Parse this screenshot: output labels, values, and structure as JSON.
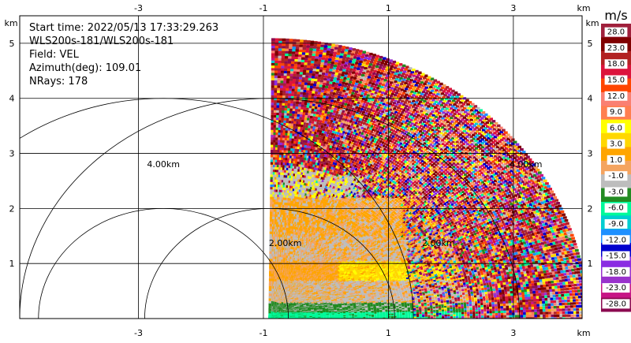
{
  "chart_data": {
    "type": "heatmap",
    "title": "",
    "info_lines": [
      "Start time: 2022/05/13 17:33:29.263",
      "WLS200s-181/WLS200s-181",
      "Field: VEL",
      "Azimuth(deg): 109.01",
      "NRays: 178"
    ],
    "xlim": [
      -4.9,
      4.1
    ],
    "ylim": [
      0,
      5.5
    ],
    "x_ticks": [
      "-3",
      "-1",
      "1",
      "3"
    ],
    "x_tick_values": [
      -3,
      -1,
      1,
      3
    ],
    "y_ticks": [
      "1",
      "2",
      "3",
      "4",
      "5"
    ],
    "y_tick_values": [
      1,
      2,
      3,
      4,
      5
    ],
    "x_unit": "km",
    "y_unit": "km",
    "grid": true,
    "range_rings": [
      {
        "radius": 2.0,
        "label": "2.00km"
      },
      {
        "radius": 4.0,
        "label": "4.00km"
      }
    ],
    "ring_label_copies": [
      {
        "label": "2.00km",
        "x": -0.65,
        "y": 1.32
      },
      {
        "label": "4.00km",
        "x": -2.6,
        "y": 2.75
      },
      {
        "label": "2.00km",
        "x": 1.8,
        "y": 1.32
      },
      {
        "label": "4.00km",
        "x": 3.2,
        "y": 2.75
      }
    ],
    "sector": {
      "center_x": -0.9,
      "center_y": 0,
      "max_range_km": 5.1,
      "theta_deg": [
        0,
        90
      ]
    },
    "colorbar": {
      "unit": "m/s",
      "tick_labels": [
        "-28.0",
        "-23.0",
        "-18.0",
        "-15.0",
        "-12.0",
        "-9.0",
        "-6.0",
        "-3.0",
        "-1.0",
        "1.0",
        "3.0",
        "6.0",
        "9.0",
        "12.0",
        "15.0",
        "18.0",
        "23.0",
        "28.0"
      ],
      "colors": [
        "#8b0a50",
        "#c71585",
        "#9932cc",
        "#8a2be2",
        "#0000cd",
        "#1e90ff",
        "#00ced1",
        "#00fa9a",
        "#228b22",
        "#bdbdbd",
        "#f4a460",
        "#ffa500",
        "#ffd700",
        "#ffff00",
        "#ff7f50",
        "#fa8072",
        "#ff4500",
        "#dc143c",
        "#b22222",
        "#800000",
        "#a0203c"
      ]
    }
  }
}
